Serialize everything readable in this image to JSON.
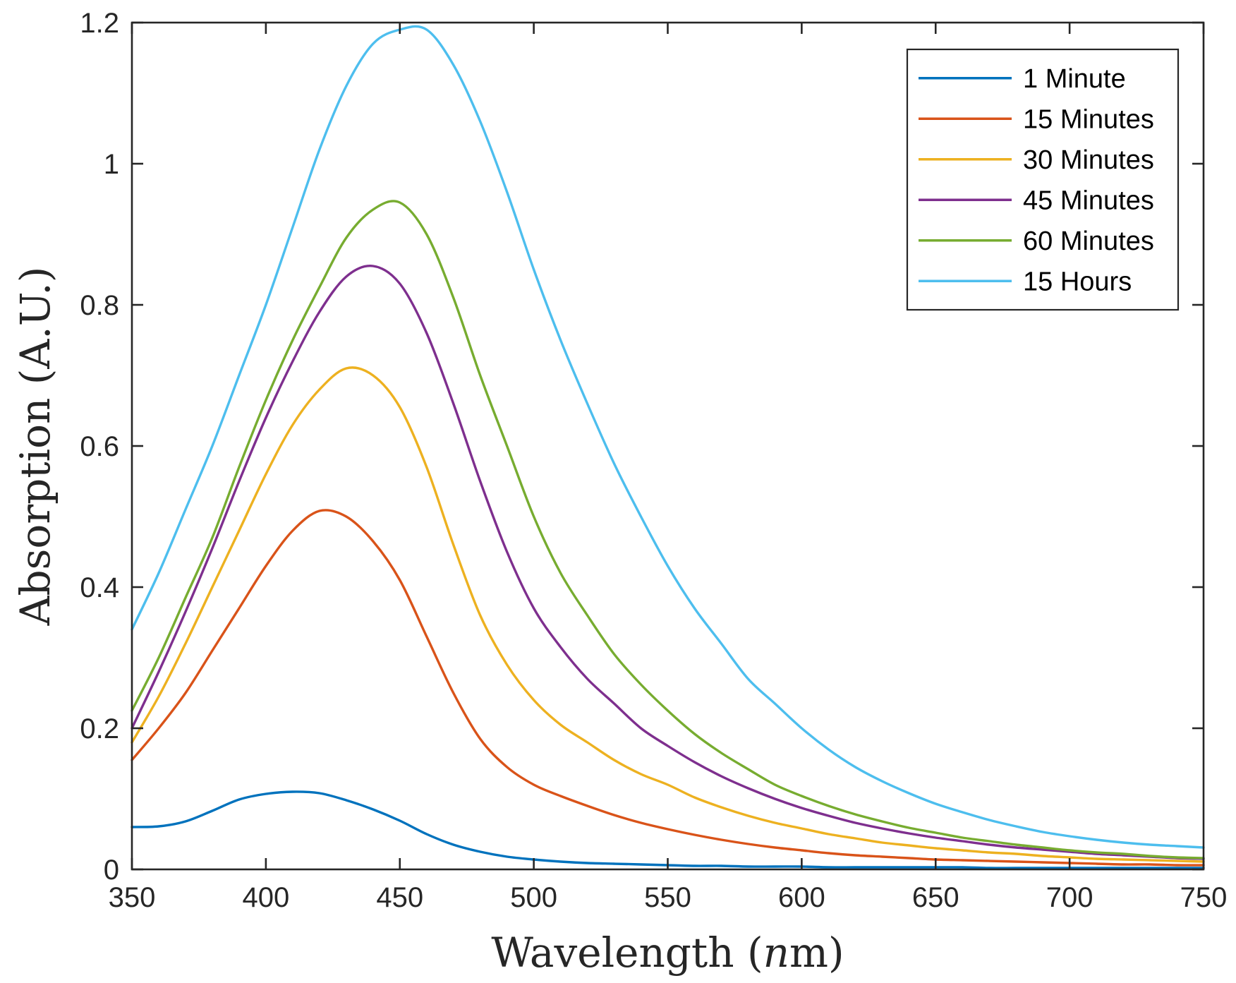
{
  "chart_data": {
    "type": "line",
    "title": "",
    "xlabel_main": "Wavelength (",
    "xlabel_italic": "n",
    "xlabel_end": "m)",
    "ylabel": "Absorption (A.U.)",
    "xlim": [
      350,
      750
    ],
    "ylim": [
      0,
      1.2
    ],
    "xticks": [
      350,
      400,
      450,
      500,
      550,
      600,
      650,
      700,
      750
    ],
    "xtick_labels": [
      "350",
      "400",
      "450",
      "500",
      "550",
      "600",
      "650",
      "700",
      "750"
    ],
    "yticks": [
      0,
      0.2,
      0.4,
      0.6,
      0.8,
      1.0,
      1.2
    ],
    "ytick_labels": [
      "0",
      "0.2",
      "0.4",
      "0.6",
      "0.8",
      "1",
      "1.2"
    ],
    "grid": false,
    "legend_position": "top-right",
    "x": [
      350,
      360,
      370,
      380,
      390,
      400,
      410,
      420,
      430,
      440,
      450,
      460,
      470,
      480,
      490,
      500,
      510,
      520,
      530,
      540,
      550,
      560,
      570,
      580,
      590,
      600,
      610,
      620,
      630,
      640,
      650,
      660,
      670,
      680,
      690,
      700,
      710,
      720,
      730,
      740,
      750
    ],
    "series": [
      {
        "name": "1 Minute",
        "color": "#0072BD",
        "values": [
          0.06,
          0.061,
          0.068,
          0.083,
          0.099,
          0.107,
          0.11,
          0.108,
          0.098,
          0.085,
          0.069,
          0.05,
          0.035,
          0.025,
          0.018,
          0.014,
          0.011,
          0.009,
          0.008,
          0.007,
          0.006,
          0.005,
          0.005,
          0.004,
          0.004,
          0.004,
          0.003,
          0.003,
          0.003,
          0.003,
          0.003,
          0.003,
          0.002,
          0.002,
          0.002,
          0.002,
          0.002,
          0.002,
          0.002,
          0.002,
          0.002
        ]
      },
      {
        "name": "15 Minutes",
        "color": "#D95319",
        "values": [
          0.155,
          0.2,
          0.25,
          0.31,
          0.37,
          0.43,
          0.48,
          0.508,
          0.5,
          0.465,
          0.41,
          0.33,
          0.25,
          0.185,
          0.145,
          0.12,
          0.104,
          0.09,
          0.077,
          0.066,
          0.057,
          0.049,
          0.042,
          0.036,
          0.031,
          0.027,
          0.023,
          0.02,
          0.018,
          0.016,
          0.014,
          0.013,
          0.012,
          0.011,
          0.01,
          0.009,
          0.008,
          0.007,
          0.007,
          0.006,
          0.006
        ]
      },
      {
        "name": "30 Minutes",
        "color": "#EDB120",
        "values": [
          0.18,
          0.245,
          0.32,
          0.4,
          0.48,
          0.56,
          0.63,
          0.68,
          0.71,
          0.7,
          0.655,
          0.57,
          0.46,
          0.36,
          0.29,
          0.24,
          0.205,
          0.18,
          0.155,
          0.135,
          0.12,
          0.102,
          0.088,
          0.076,
          0.066,
          0.058,
          0.05,
          0.044,
          0.038,
          0.034,
          0.03,
          0.027,
          0.024,
          0.022,
          0.019,
          0.017,
          0.015,
          0.014,
          0.013,
          0.012,
          0.011
        ]
      },
      {
        "name": "45 Minutes",
        "color": "#7E2F8E",
        "values": [
          0.2,
          0.28,
          0.365,
          0.455,
          0.55,
          0.64,
          0.72,
          0.79,
          0.84,
          0.855,
          0.83,
          0.76,
          0.66,
          0.55,
          0.45,
          0.37,
          0.315,
          0.27,
          0.235,
          0.2,
          0.175,
          0.152,
          0.132,
          0.115,
          0.1,
          0.087,
          0.076,
          0.066,
          0.058,
          0.051,
          0.045,
          0.04,
          0.035,
          0.031,
          0.028,
          0.025,
          0.022,
          0.02,
          0.018,
          0.016,
          0.015
        ]
      },
      {
        "name": "60 Minutes",
        "color": "#77AC30",
        "values": [
          0.225,
          0.3,
          0.385,
          0.47,
          0.57,
          0.665,
          0.75,
          0.825,
          0.895,
          0.935,
          0.945,
          0.9,
          0.81,
          0.7,
          0.6,
          0.5,
          0.42,
          0.36,
          0.305,
          0.262,
          0.225,
          0.192,
          0.165,
          0.142,
          0.12,
          0.104,
          0.09,
          0.078,
          0.068,
          0.059,
          0.052,
          0.045,
          0.04,
          0.035,
          0.031,
          0.027,
          0.024,
          0.022,
          0.019,
          0.017,
          0.016
        ]
      },
      {
        "name": "15 Hours",
        "color": "#4DBEEE",
        "values": [
          0.34,
          0.42,
          0.51,
          0.6,
          0.7,
          0.8,
          0.91,
          1.02,
          1.11,
          1.17,
          1.19,
          1.19,
          1.14,
          1.06,
          0.96,
          0.85,
          0.75,
          0.66,
          0.575,
          0.5,
          0.43,
          0.37,
          0.32,
          0.27,
          0.235,
          0.2,
          0.17,
          0.145,
          0.125,
          0.108,
          0.093,
          0.081,
          0.07,
          0.061,
          0.053,
          0.047,
          0.042,
          0.038,
          0.035,
          0.033,
          0.031
        ]
      }
    ]
  }
}
